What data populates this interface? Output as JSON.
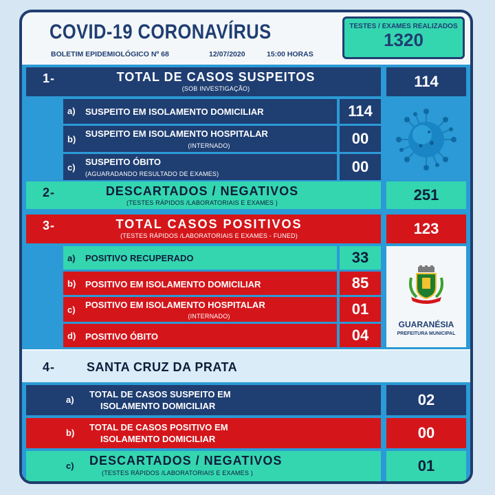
{
  "header": {
    "title": "COVID-19  CORONAVÍRUS",
    "bulletin": "BOLETIM EPIDEMIOLÓGICO Nº 68",
    "date": "12/07/2020",
    "time": "15:00 HORAS",
    "tests_label": "TESTES / EXAMES REALIZADOS",
    "tests_value": "1320"
  },
  "s1": {
    "num": "1-",
    "title": "TOTAL DE CASOS SUSPEITOS",
    "subtitle": "(SOB INVESTIGAÇÃO)",
    "value": "114",
    "items": [
      {
        "letter": "a)",
        "label": "SUSPEITO EM ISOLAMENTO DOMICILIAR",
        "sub": "",
        "value": "114"
      },
      {
        "letter": "b)",
        "label": "SUSPEITO EM ISOLAMENTO HOSPITALAR",
        "sub": "(INTERNADO)",
        "value": "00"
      },
      {
        "letter": "c)",
        "label": "SUSPEITO ÓBITO",
        "sub": "(AGUARADANDO RESULTADO  DE EXAMES)",
        "value": "00"
      }
    ]
  },
  "s2": {
    "num": "2-",
    "title": "DESCARTADOS / NEGATIVOS",
    "subtitle": "(TESTES RÁPIDOS /LABORATORIAIS E EXAMES )",
    "value": "251"
  },
  "s3": {
    "num": "3-",
    "title": "TOTAL CASOS POSITIVOS",
    "subtitle": "(TESTES RÁPIDOS /LABORATORIAIS E EXAMES - FUNED)",
    "value": "123",
    "items": [
      {
        "letter": "a)",
        "label": "POSITIVO RECUPERADO",
        "sub": "",
        "value": "33"
      },
      {
        "letter": "b)",
        "label": "POSITIVO EM ISOLAMENTO DOMICILIAR",
        "sub": "",
        "value": "85"
      },
      {
        "letter": "c)",
        "label": "POSITIVO EM ISOLAMENTO HOSPITALAR",
        "sub": "(INTERNADO)",
        "value": "01"
      },
      {
        "letter": "d)",
        "label": "POSITIVO ÓBITO",
        "sub": "",
        "value": "04"
      }
    ]
  },
  "logo": {
    "name": "GUARANÉSIA",
    "subtitle": "PREFEITURA MUNICIPAL",
    "ribbon": "GUARANÉSIA"
  },
  "s4": {
    "num": "4-",
    "title": "SANTA CRUZ DA PRATA",
    "items": [
      {
        "letter": "a)",
        "line1": "TOTAL DE CASOS SUSPEITO EM",
        "line2": "ISOLAMENTO DOMICILIAR",
        "value": "02"
      },
      {
        "letter": "b)",
        "line1": "TOTAL DE CASOS POSITIVO EM",
        "line2": "ISOLAMENTO DOMICILIAR",
        "value": "00"
      },
      {
        "letter": "c)",
        "line1": "DESCARTADOS / NEGATIVOS",
        "line2": "(TESTES RÁPIDOS /LABORATORIAIS E EXAMES )",
        "value": "01"
      }
    ]
  },
  "colors": {
    "navy": "#1f3e72",
    "red": "#d4161b",
    "teal": "#34d6b0",
    "light_blue": "#d9ecf7"
  }
}
